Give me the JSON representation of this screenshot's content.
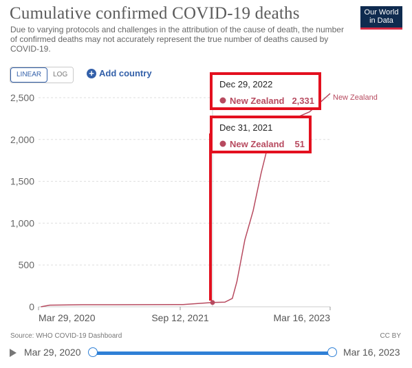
{
  "header": {
    "title": "Cumulative confirmed COVID-19 deaths",
    "subtitle": "Due to varying protocols and challenges in the attribution of the cause of death, the number of confirmed deaths may not accurately represent the true number of deaths caused by COVID-19.",
    "logo": "Our World in Data"
  },
  "controls": {
    "linear_label": "LINEAR",
    "log_label": "LOG",
    "add_country_label": "Add country"
  },
  "tooltips": [
    {
      "date": "Dec 29, 2022",
      "country": "New Zealand",
      "value": "2,331"
    },
    {
      "date": "Dec 31, 2021",
      "country": "New Zealand",
      "value": "51"
    }
  ],
  "footer": {
    "source": "Source: WHO COVID-19 Dashboard",
    "license": "CC BY"
  },
  "timeline": {
    "start_label": "Mar 29, 2020",
    "end_label": "Mar 16, 2023"
  },
  "colors": {
    "series": "#b74a5f",
    "highlight_box": "#e3101f",
    "accent": "#3360a9"
  },
  "chart_data": {
    "type": "line",
    "title": "Cumulative confirmed COVID-19 deaths",
    "ylim": [
      0,
      2500
    ],
    "y_ticks": [
      "0",
      "500",
      "1,000",
      "1,500",
      "2,000",
      "2,500"
    ],
    "x_ticks": [
      "Mar 29, 2020",
      "Sep 12, 2021",
      "Mar 16, 2023"
    ],
    "grid": "horizontal dashed",
    "series": [
      {
        "name": "New Zealand",
        "points": [
          [
            "2020-03-29",
            0
          ],
          [
            "2020-05-01",
            20
          ],
          [
            "2020-09-01",
            25
          ],
          [
            "2021-01-01",
            25
          ],
          [
            "2021-09-12",
            27
          ],
          [
            "2021-12-31",
            51
          ],
          [
            "2022-02-15",
            55
          ],
          [
            "2022-03-15",
            100
          ],
          [
            "2022-04-01",
            300
          ],
          [
            "2022-05-01",
            800
          ],
          [
            "2022-06-01",
            1150
          ],
          [
            "2022-07-01",
            1600
          ],
          [
            "2022-08-01",
            2000
          ],
          [
            "2022-09-01",
            2050
          ],
          [
            "2022-10-01",
            2150
          ],
          [
            "2022-11-01",
            2250
          ],
          [
            "2022-12-29",
            2331
          ],
          [
            "2023-03-16",
            2550
          ]
        ]
      }
    ],
    "highlighted_points": [
      {
        "date": "2021-12-31",
        "value": 51
      }
    ]
  }
}
